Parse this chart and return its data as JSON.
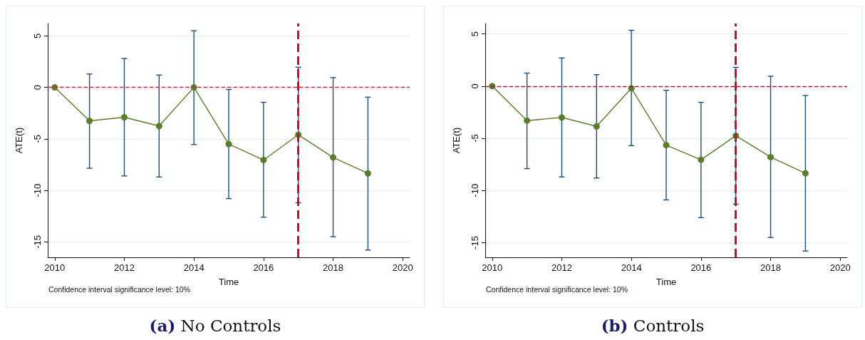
{
  "chart_data": [
    {
      "type": "line",
      "title": "(a) No Controls",
      "xlabel": "Time",
      "ylabel": "ATE(t)",
      "annotations": [
        "Confidence interval significance level: 10%"
      ],
      "x": [
        2010,
        2011,
        2012,
        2013,
        2014,
        2015,
        2016,
        2017,
        2018,
        2019
      ],
      "series": [
        {
          "color": "#5a7d2c",
          "values": [
            0,
            -3.25,
            -2.9,
            -3.75,
            0,
            -5.5,
            -7.05,
            -4.6,
            -6.8,
            -8.35
          ],
          "errors": [
            null,
            [
              -7.85,
              1.3
            ],
            [
              -8.6,
              2.8
            ],
            [
              -8.7,
              1.2
            ],
            [
              -5.55,
              5.5
            ],
            [
              -10.8,
              -0.2
            ],
            [
              -12.6,
              -1.45
            ],
            [
              -11.2,
              1.95
            ],
            [
              -14.5,
              0.95
            ],
            [
              -15.8,
              -0.95
            ]
          ]
        }
      ],
      "xlim": [
        2009.8,
        2020.2
      ],
      "xticks": [
        2010,
        2012,
        2014,
        2016,
        2018,
        2020
      ],
      "ylim": [
        -16.5,
        6.2
      ],
      "yticks": [
        -15,
        -10,
        -5,
        0,
        5
      ],
      "ref_lines": [
        {
          "axis": "y",
          "value": 0,
          "color": "#d6254d",
          "line_style": "dashed"
        },
        {
          "axis": "x",
          "value": 2017,
          "color": "#cc0a2f",
          "line_style": "dashed"
        }
      ],
      "grid": "y",
      "marker": "circle",
      "line_style": "solid"
    },
    {
      "type": "line",
      "title": "(b) Controls",
      "xlabel": "Time",
      "ylabel": "ATE(t)",
      "annotations": [
        "Confidence interval significance level: 10%"
      ],
      "x": [
        2010,
        2011,
        2012,
        2013,
        2014,
        2015,
        2016,
        2017,
        2018,
        2019
      ],
      "series": [
        {
          "color": "#5a7d2c",
          "values": [
            0,
            -3.3,
            -3.0,
            -3.85,
            -0.2,
            -5.65,
            -7.05,
            -4.75,
            -6.8,
            -8.35
          ],
          "errors": [
            null,
            [
              -7.9,
              1.25
            ],
            [
              -8.7,
              2.7
            ],
            [
              -8.8,
              1.1
            ],
            [
              -5.7,
              5.35
            ],
            [
              -10.9,
              -0.4
            ],
            [
              -12.6,
              -1.55
            ],
            [
              -11.3,
              1.8
            ],
            [
              -14.5,
              0.95
            ],
            [
              -15.8,
              -0.9
            ]
          ]
        }
      ],
      "xlim": [
        2009.8,
        2020.2
      ],
      "xticks": [
        2010,
        2012,
        2014,
        2016,
        2018,
        2020
      ],
      "ylim": [
        -16.4,
        6.0
      ],
      "yticks": [
        -15,
        -10,
        -5,
        0,
        5
      ],
      "ref_lines": [
        {
          "axis": "y",
          "value": 0,
          "color": "#b5163b",
          "line_style": "dashed"
        },
        {
          "axis": "x",
          "value": 2017,
          "color": "#cc0a2f",
          "line_style": "dashed"
        }
      ],
      "grid": "y",
      "marker": "circle",
      "line_style": "solid"
    }
  ]
}
